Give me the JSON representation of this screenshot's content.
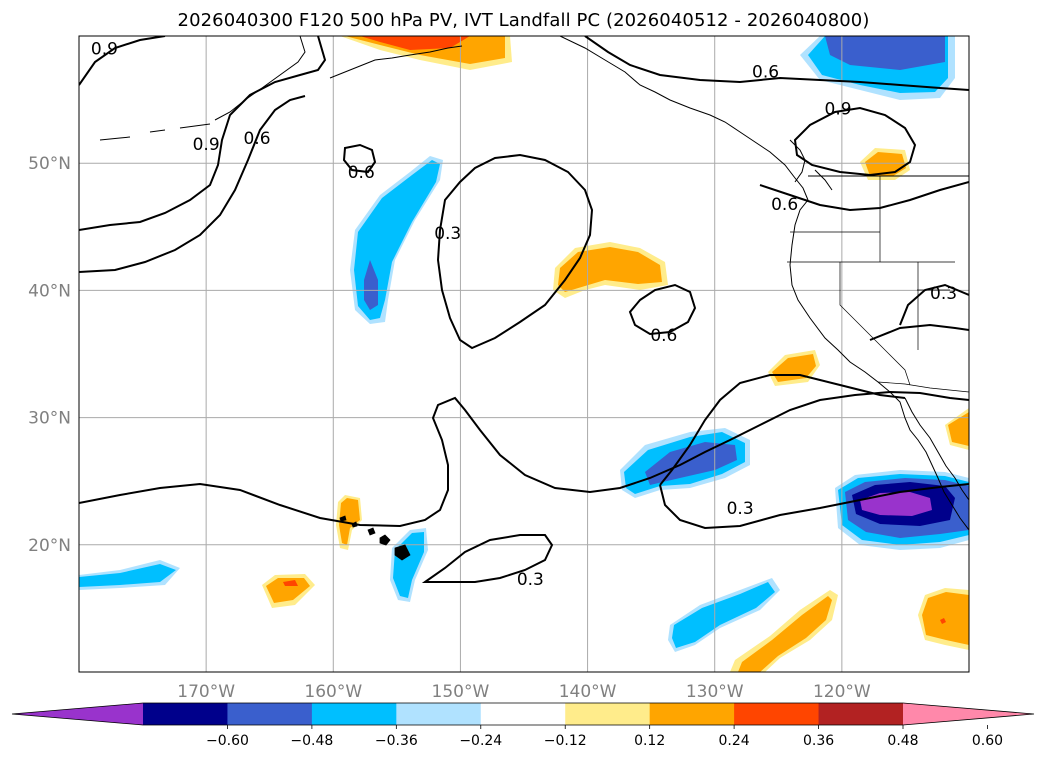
{
  "title": "2026040300 F120 500 hPa PV, IVT Landfall PC (2026040512 - 2026040800)",
  "map": {
    "lon_range": [
      -180,
      -110
    ],
    "lat_range": [
      10,
      60
    ],
    "lon_ticks": [
      {
        "value": -170,
        "label": "170°W"
      },
      {
        "value": -160,
        "label": "160°W"
      },
      {
        "value": -150,
        "label": "150°W"
      },
      {
        "value": -140,
        "label": "140°W"
      },
      {
        "value": -130,
        "label": "130°W"
      },
      {
        "value": -120,
        "label": "120°W"
      }
    ],
    "lat_ticks": [
      {
        "value": 20,
        "label": "20°N"
      },
      {
        "value": 30,
        "label": "30°N"
      },
      {
        "value": 40,
        "label": "40°N"
      },
      {
        "value": 50,
        "label": "50°N"
      }
    ],
    "grid": true,
    "contour_labels": [
      {
        "lon": -178,
        "lat": 59,
        "text": "0.9"
      },
      {
        "lon": -170,
        "lat": 51.5,
        "text": "0.9"
      },
      {
        "lon": -166,
        "lat": 52,
        "text": "0.6"
      },
      {
        "lon": -157.8,
        "lat": 49.3,
        "text": "0.6"
      },
      {
        "lon": -151,
        "lat": 44.5,
        "text": "0.3"
      },
      {
        "lon": -134,
        "lat": 36.5,
        "text": "0.6"
      },
      {
        "lon": -126,
        "lat": 57.2,
        "text": "0.6"
      },
      {
        "lon": -120.3,
        "lat": 54.3,
        "text": "0.9"
      },
      {
        "lon": -124.5,
        "lat": 46.8,
        "text": "0.6"
      },
      {
        "lon": -112,
        "lat": 39.8,
        "text": "0.3"
      },
      {
        "lon": -128,
        "lat": 22.9,
        "text": "0.3"
      },
      {
        "lon": -144.5,
        "lat": 17.3,
        "text": "0.3"
      }
    ]
  },
  "colorbar": {
    "colors": [
      "#9933cc",
      "#00008b",
      "#3a5fcd",
      "#00bfff",
      "#b0e2ff",
      "#ffffff",
      "#ffec8b",
      "#ffa500",
      "#ff4500",
      "#b22222",
      "#ff88aa"
    ],
    "tick_labels": [
      "−0.60",
      "−0.48",
      "−0.36",
      "−0.24",
      "−0.12",
      "0.12",
      "0.24",
      "0.36",
      "0.48",
      "0.60"
    ]
  }
}
